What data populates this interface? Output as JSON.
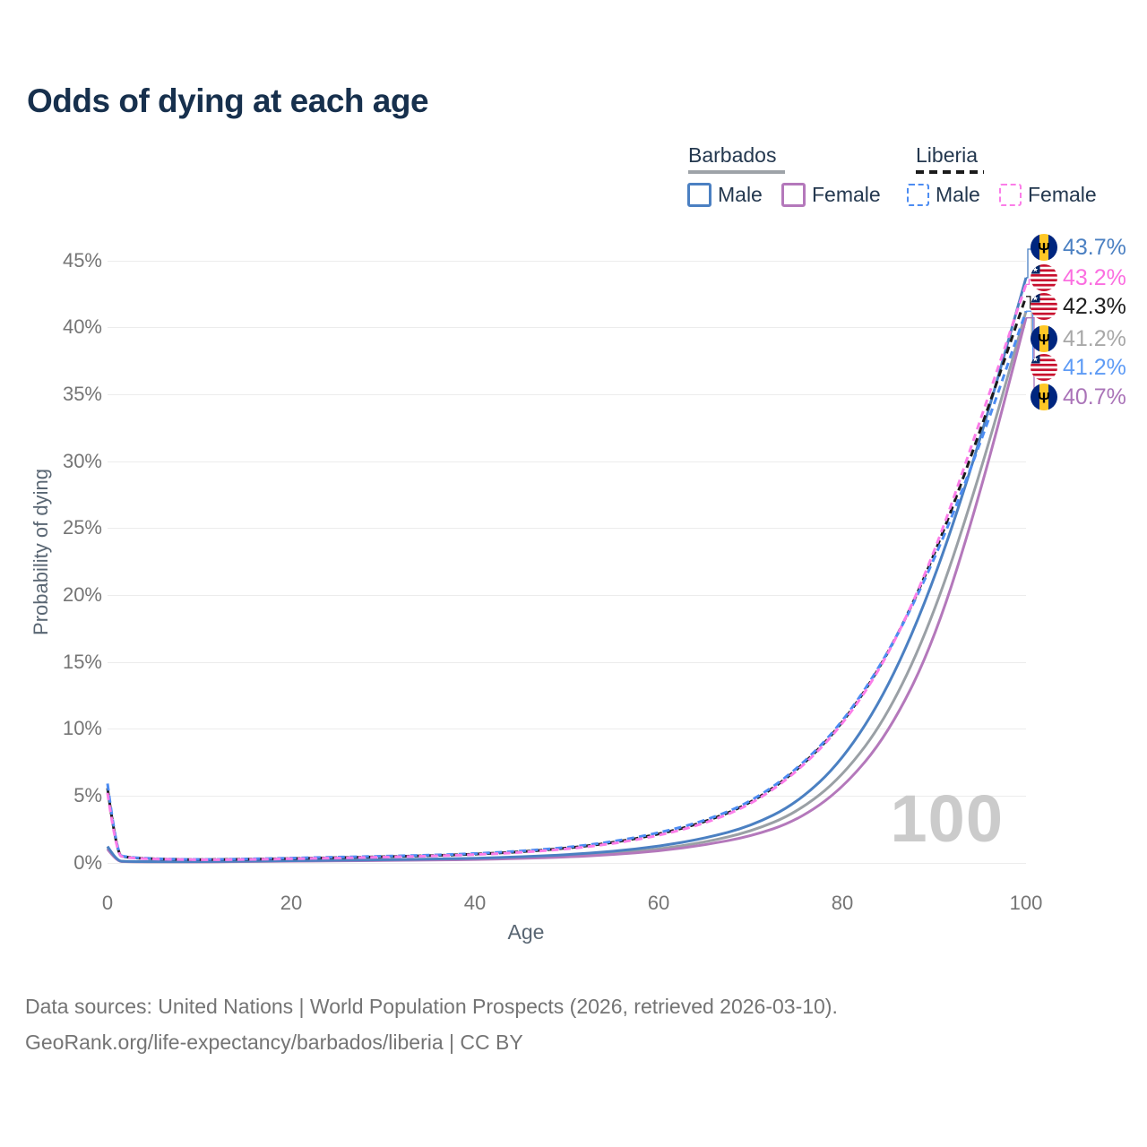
{
  "title": "Odds of dying at each age",
  "legend": {
    "groups": [
      {
        "country": "Barbados",
        "line_style": "solid",
        "items": [
          {
            "label": "Male"
          },
          {
            "label": "Female"
          }
        ]
      },
      {
        "country": "Liberia",
        "line_style": "dashed",
        "items": [
          {
            "label": "Male"
          },
          {
            "label": "Female"
          }
        ]
      }
    ]
  },
  "colors": {
    "title_text": "#17304d",
    "legend_text": "#24384f",
    "axis_text": "#757575",
    "axis_label_text": "#596673",
    "gridline": "#ececec",
    "watermark_text": "#cbcbcb",
    "footer_text": "#747474",
    "barbados_male": "#4b80c2",
    "barbados_female": "#b478bb",
    "barbados_both": "#9aa0a5",
    "liberia_male": "#4c8cf2",
    "liberia_female": "#fb7de8",
    "liberia_both": "#1b1b1b"
  },
  "chart_data": {
    "type": "line",
    "title": "Odds of dying at each age",
    "xlabel": "Age",
    "ylabel": "Probability of dying",
    "xlim": [
      0,
      100
    ],
    "ylim": [
      0,
      45
    ],
    "grid": "horizontal-only",
    "legend_position": "top-right",
    "xticks": [
      "0",
      "20",
      "40",
      "60",
      "80",
      "100"
    ],
    "yticks": [
      "45%",
      "40%",
      "35%",
      "30%",
      "25%",
      "20%",
      "15%",
      "10%",
      "5%",
      "0%"
    ],
    "x_unit": "years of age",
    "y_unit": "percent probability of dying at that age",
    "ages": [
      0,
      1,
      2,
      5,
      10,
      15,
      20,
      25,
      30,
      35,
      40,
      45,
      50,
      55,
      60,
      65,
      70,
      75,
      80,
      85,
      90,
      95,
      100
    ],
    "series": [
      {
        "name": "Barbados Both sexes",
        "country": "Barbados",
        "sex": "Both",
        "style": "solid",
        "color": "#9aa0a5",
        "values": [
          1.1,
          0.11,
          0.07,
          0.05,
          0.05,
          0.08,
          0.11,
          0.14,
          0.17,
          0.21,
          0.26,
          0.35,
          0.48,
          0.68,
          1.0,
          1.5,
          2.3,
          3.7,
          6.4,
          11.0,
          18.5,
          29.0,
          41.2
        ]
      },
      {
        "name": "Barbados Female",
        "country": "Barbados",
        "sex": "Female",
        "style": "solid",
        "color": "#b478bb",
        "values": [
          1.0,
          0.09,
          0.06,
          0.05,
          0.04,
          0.07,
          0.09,
          0.12,
          0.15,
          0.18,
          0.22,
          0.3,
          0.41,
          0.58,
          0.85,
          1.3,
          1.95,
          3.1,
          5.5,
          9.6,
          16.5,
          27.5,
          40.7
        ]
      },
      {
        "name": "Barbados Male",
        "country": "Barbados",
        "sex": "Male",
        "style": "solid",
        "color": "#4b80c2",
        "values": [
          1.2,
          0.12,
          0.08,
          0.06,
          0.06,
          0.1,
          0.14,
          0.17,
          0.2,
          0.25,
          0.31,
          0.42,
          0.58,
          0.82,
          1.2,
          1.8,
          2.7,
          4.4,
          7.6,
          13.0,
          21.0,
          31.5,
          43.7
        ]
      },
      {
        "name": "Liberia Both sexes",
        "country": "Liberia",
        "sex": "Both",
        "style": "dashed",
        "color": "#1b1b1b",
        "values": [
          5.55,
          0.58,
          0.38,
          0.26,
          0.21,
          0.24,
          0.3,
          0.36,
          0.43,
          0.51,
          0.62,
          0.8,
          1.06,
          1.47,
          2.1,
          3.0,
          4.4,
          6.8,
          10.3,
          15.5,
          22.8,
          32.2,
          42.3
        ]
      },
      {
        "name": "Liberia Male",
        "country": "Liberia",
        "sex": "Male",
        "style": "dashed",
        "color": "#4c8cf2",
        "values": [
          5.9,
          0.62,
          0.4,
          0.28,
          0.22,
          0.26,
          0.33,
          0.4,
          0.47,
          0.55,
          0.66,
          0.85,
          1.12,
          1.55,
          2.2,
          3.1,
          4.5,
          6.9,
          10.4,
          15.6,
          22.5,
          31.2,
          41.2
        ]
      },
      {
        "name": "Liberia Female",
        "country": "Liberia",
        "sex": "Female",
        "style": "dashed",
        "color": "#fb7de8",
        "values": [
          5.2,
          0.55,
          0.36,
          0.25,
          0.2,
          0.22,
          0.28,
          0.33,
          0.4,
          0.48,
          0.58,
          0.75,
          1.0,
          1.4,
          2.0,
          2.9,
          4.3,
          6.7,
          10.2,
          15.4,
          23.0,
          33.0,
          43.2
        ]
      }
    ]
  },
  "end_labels": [
    {
      "series": "Barbados Male",
      "flag": "barbados",
      "text": "43.7%",
      "value": 43.7,
      "color": "#4b80c2"
    },
    {
      "series": "Liberia Female",
      "flag": "liberia",
      "text": "43.2%",
      "value": 43.2,
      "color": "#fb6ee0"
    },
    {
      "series": "Liberia Both sexes",
      "flag": "liberia",
      "text": "42.3%",
      "value": 42.3,
      "color": "#1d1d1d"
    },
    {
      "series": "Barbados Both sexes",
      "flag": "barbados",
      "text": "41.2%",
      "value": 41.2,
      "color": "#a8a8a8"
    },
    {
      "series": "Liberia Male",
      "flag": "liberia",
      "text": "41.2%",
      "value": 41.2,
      "color": "#5e9bf5"
    },
    {
      "series": "Barbados Female",
      "flag": "barbados",
      "text": "40.7%",
      "value": 40.7,
      "color": "#aa74b8"
    }
  ],
  "watermark": "100",
  "footer": {
    "line1": "Data sources: United Nations | World Population Prospects (2026, retrieved 2026-03-10).",
    "line2": "GeoRank.org/life-expectancy/barbados/liberia | CC BY"
  }
}
